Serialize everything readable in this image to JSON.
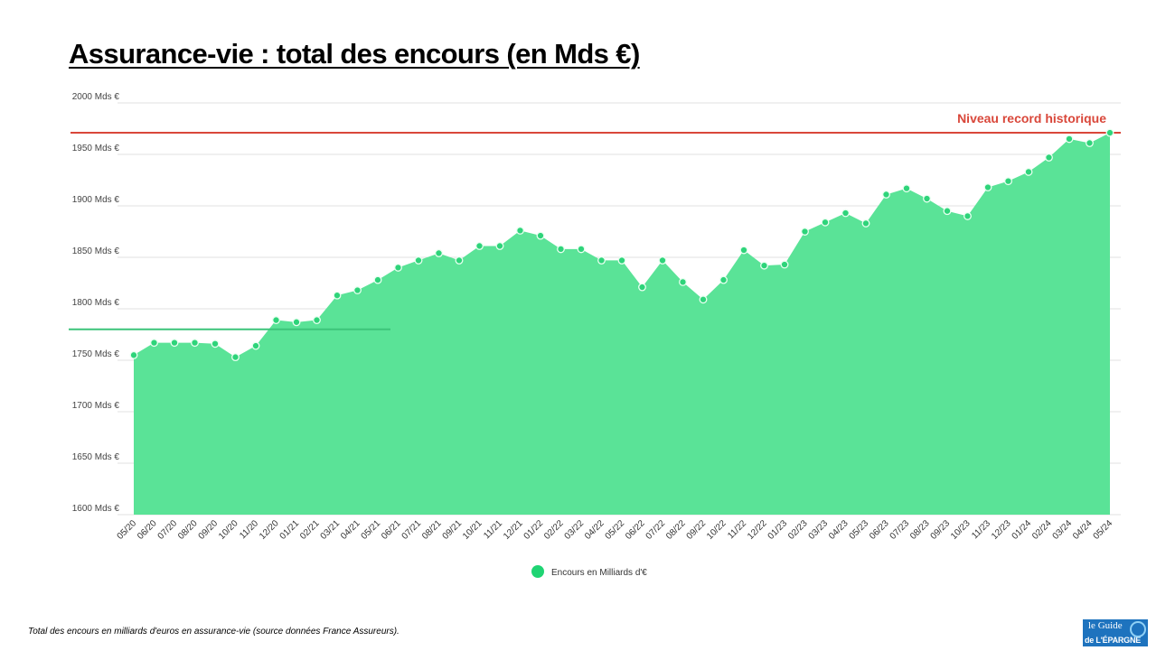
{
  "title": "Assurance-vie : total des encours (en Mds €)",
  "caption": "Total des encours en milliards d'euros en assurance-vie (source données France Assureurs).",
  "logo_text": "Le Guide Indépendant de l'Épargne",
  "colors": {
    "area": "#5ae397",
    "point": "#2ed47a",
    "record_line": "#d9473a",
    "start_line": "#3cc47a",
    "grid": "#e2e2e2"
  },
  "chart_data": {
    "type": "area",
    "title": "",
    "xlabel": "",
    "ylabel": "",
    "ylim": [
      1600,
      2000
    ],
    "grid": true,
    "legend_position": "bottom",
    "yticks": [
      "1600 Mds €",
      "1650 Mds €",
      "1700 Mds €",
      "1750 Mds €",
      "1800 Mds €",
      "1850 Mds €",
      "1900 Mds €",
      "1950 Mds €",
      "2000 Mds €"
    ],
    "ytick_values": [
      1600,
      1650,
      1700,
      1750,
      1800,
      1850,
      1900,
      1950,
      2000
    ],
    "categories": [
      "05/20",
      "06/20",
      "07/20",
      "08/20",
      "09/20",
      "10/20",
      "11/20",
      "12/20",
      "01/21",
      "02/21",
      "03/21",
      "04/21",
      "05/21",
      "06/21",
      "07/21",
      "08/21",
      "09/21",
      "10/21",
      "11/21",
      "12/21",
      "01/22",
      "02/22",
      "03/22",
      "04/22",
      "05/22",
      "06/22",
      "07/22",
      "08/22",
      "09/22",
      "10/22",
      "11/22",
      "12/22",
      "01/23",
      "02/23",
      "03/23",
      "04/23",
      "05/23",
      "06/23",
      "07/23",
      "08/23",
      "09/23",
      "10/23",
      "11/23",
      "12/23",
      "01/24",
      "02/24",
      "03/24",
      "04/24",
      "05/24"
    ],
    "series": [
      {
        "name": "Encours en Milliards d'€",
        "values": [
          1755,
          1767,
          1767,
          1767,
          1766,
          1753,
          1764,
          1789,
          1787,
          1789,
          1813,
          1818,
          1828,
          1840,
          1847,
          1854,
          1847,
          1861,
          1861,
          1876,
          1871,
          1858,
          1858,
          1847,
          1847,
          1821,
          1847,
          1826,
          1809,
          1828,
          1857,
          1842,
          1843,
          1875,
          1884,
          1893,
          1883,
          1911,
          1917,
          1907,
          1895,
          1890,
          1918,
          1924,
          1933,
          1947,
          1965,
          1961,
          1971
        ]
      }
    ],
    "annotations": [
      {
        "label": "Niveau record historique",
        "value": 1971
      },
      {
        "label": "",
        "value": 1780
      }
    ]
  }
}
